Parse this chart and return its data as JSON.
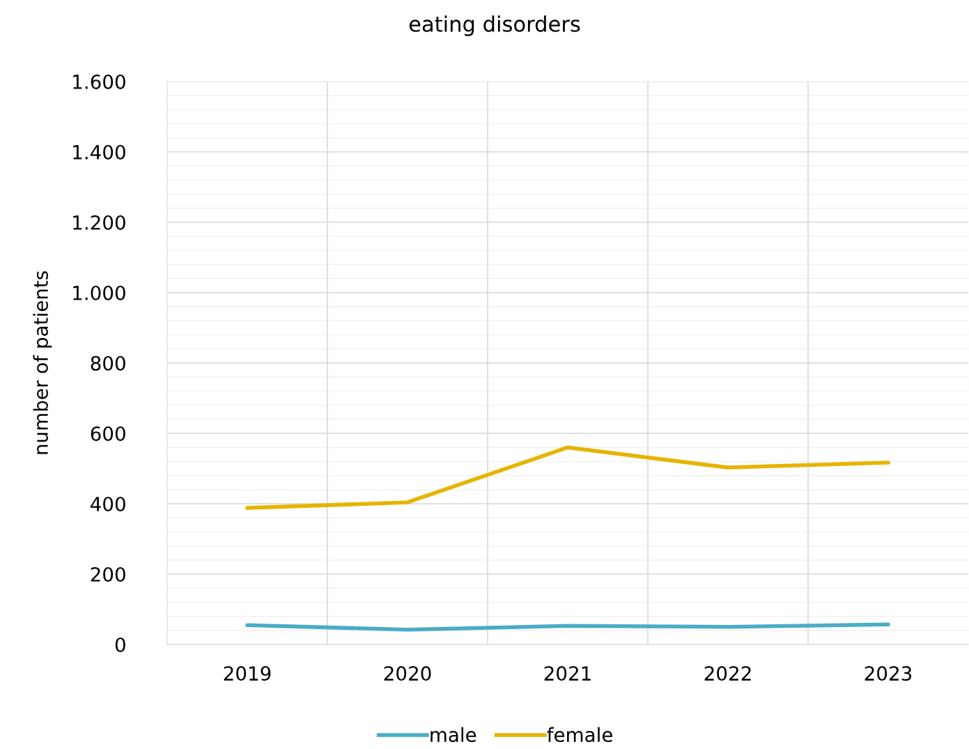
{
  "chart_data": {
    "type": "line",
    "title": "eating disorders",
    "ylabel": "number of patients",
    "categories": [
      "2019",
      "2020",
      "2021",
      "2022",
      "2023"
    ],
    "series": [
      {
        "name": "male",
        "color": "#4bacc6",
        "values": [
          55,
          42,
          53,
          50,
          57
        ]
      },
      {
        "name": "female",
        "color": "#e6b400",
        "values": [
          388,
          404,
          560,
          503,
          517
        ]
      }
    ],
    "ylim": [
      0,
      1600
    ],
    "yticks": [
      0,
      200,
      400,
      600,
      800,
      {
        "value": 1000,
        "label": "1.000"
      },
      {
        "value": 1200,
        "label": "1.200"
      },
      {
        "value": 1400,
        "label": "1.400"
      },
      {
        "value": 1600,
        "label": "1.600"
      }
    ],
    "grid": true,
    "legend": "bottom",
    "marker": "none",
    "line_style": "solid"
  }
}
